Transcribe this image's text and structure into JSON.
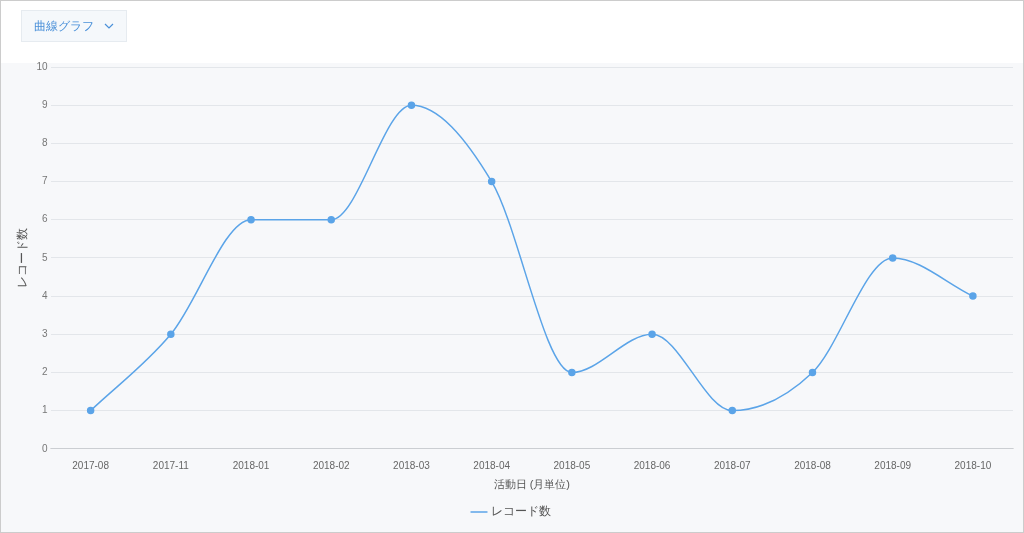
{
  "chart_data": {
    "type": "line",
    "xlabel": "活動日 (月単位)",
    "ylabel": "レコード数",
    "annotations": [
      "曲線グラフ"
    ],
    "categories": [
      "2017-08",
      "2017-11",
      "2018-01",
      "2018-02",
      "2018-03",
      "2018-04",
      "2018-05",
      "2018-06",
      "2018-07",
      "2018-08",
      "2018-09",
      "2018-10"
    ],
    "series": [
      {
        "name": "レコード数",
        "color": "#5ba4e8",
        "values": [
          1,
          3,
          6,
          6,
          9,
          7,
          2,
          3,
          1,
          2,
          5,
          4
        ]
      }
    ],
    "ylim": [
      0,
      10
    ],
    "yticks": [
      0,
      1,
      2,
      3,
      4,
      5,
      6,
      7,
      8,
      9,
      10
    ],
    "grid": "y",
    "legend": "bottom",
    "marker": "circle"
  }
}
